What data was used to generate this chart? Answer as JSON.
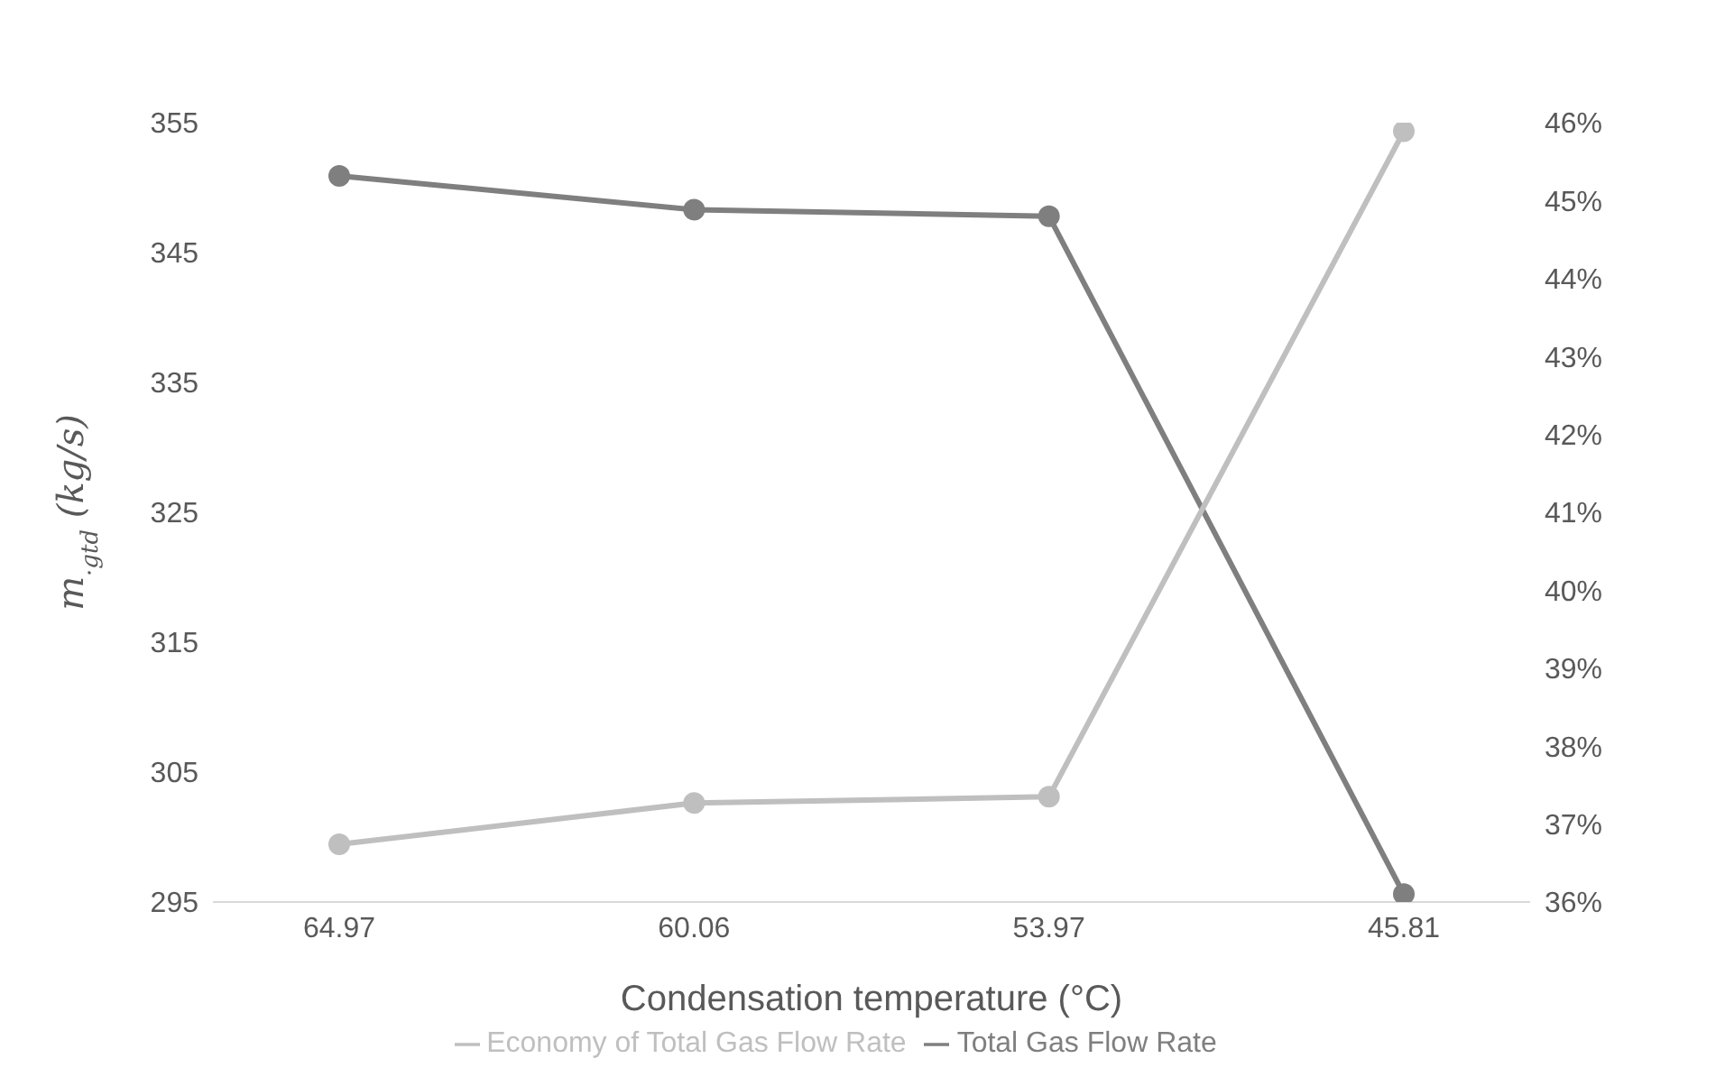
{
  "chart_data": {
    "type": "line",
    "xlabel": "Condensation temperature (°C)",
    "ylabel": "m$_{·gtd}$ (kg/s)",
    "categories": [
      "64.97",
      "60.06",
      "53.97",
      "45.81"
    ],
    "series": [
      {
        "name": "Total Gas Flow Rate",
        "color": "#7f7f7f",
        "values": [
          350.9,
          348.3,
          347.8,
          295.6
        ]
      },
      {
        "name": "Economy of Total Gas Flow Rate",
        "color": "#bfbfbf",
        "axis": "y2",
        "values": [
          36.74,
          37.27,
          37.35,
          45.89
        ]
      }
    ],
    "ylim": [
      295,
      355
    ],
    "yticks": [
      295,
      305,
      315,
      325,
      335,
      345,
      355
    ],
    "y2lim": [
      36,
      46
    ],
    "y2ticks": [
      {
        "value": 36,
        "label": "36%"
      },
      {
        "value": 37,
        "label": "37%"
      },
      {
        "value": 38,
        "label": "38%"
      },
      {
        "value": 39,
        "label": "39%"
      },
      {
        "value": 40,
        "label": "40%"
      },
      {
        "value": 41,
        "label": "41%"
      },
      {
        "value": 42,
        "label": "42%"
      },
      {
        "value": 43,
        "label": "43%"
      },
      {
        "value": 44,
        "label": "44%"
      },
      {
        "value": 45,
        "label": "45%"
      },
      {
        "value": 46,
        "label": "46%"
      }
    ],
    "marker": "circle",
    "legend": "bottom",
    "grid": false
  }
}
